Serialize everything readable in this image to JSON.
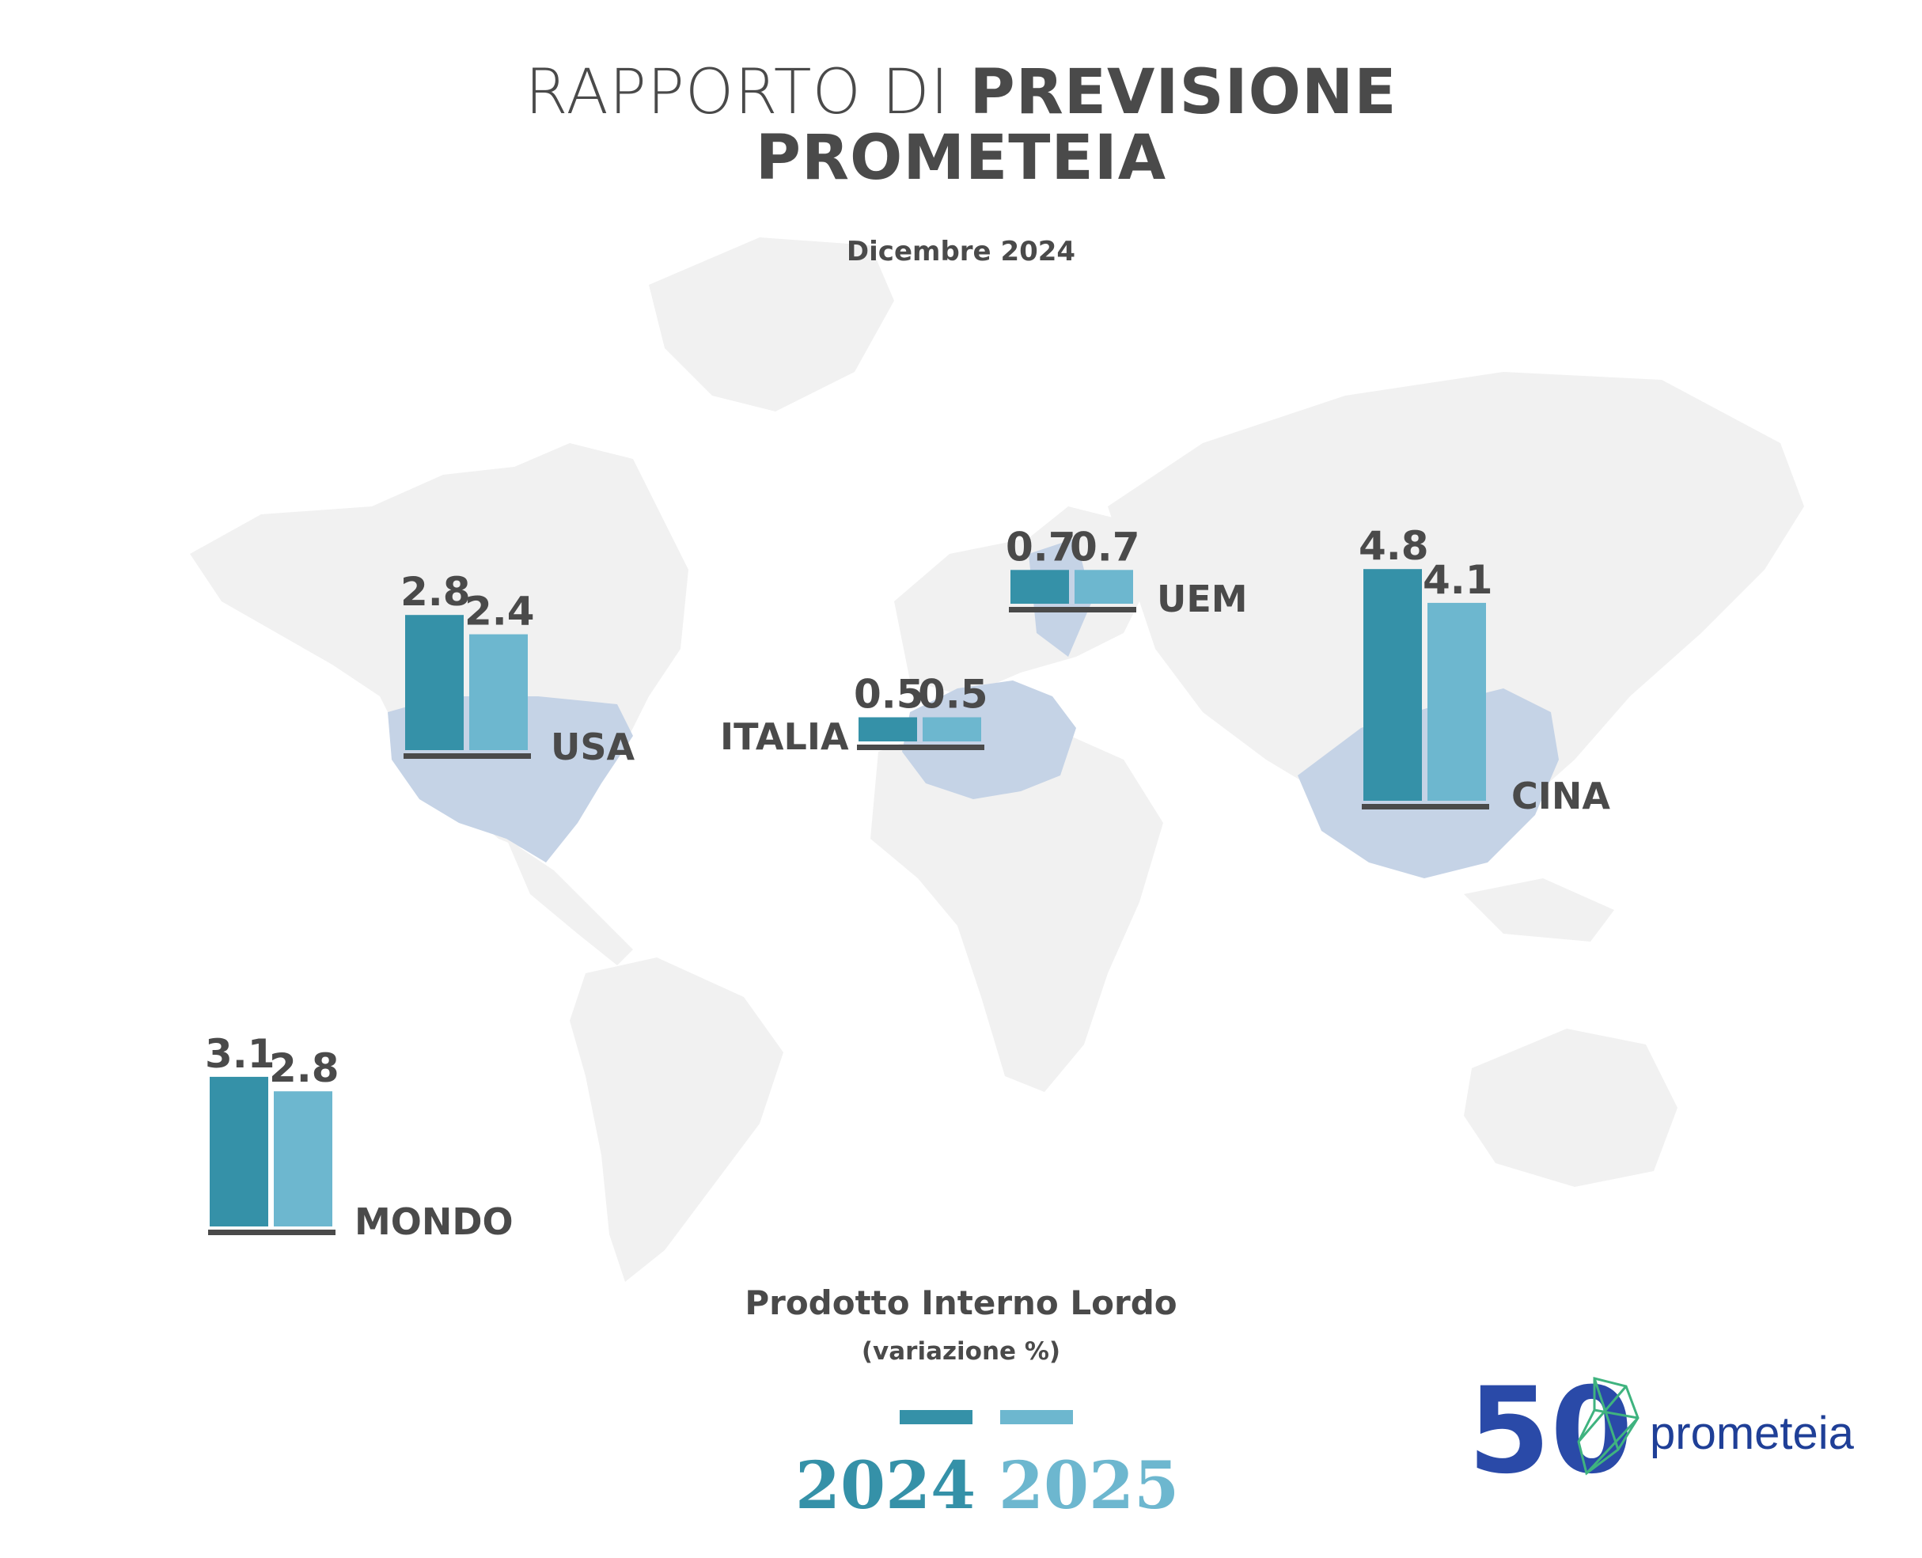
{
  "header": {
    "title_light": "RAPPORTO DI",
    "title_bold": "PREVISIONE",
    "title_line2": "PROMETEIA",
    "subtitle": "Dicembre 2024"
  },
  "colors": {
    "year_2024": "#3591a8",
    "year_2025": "#6db7cf",
    "baseline": "#4a4a4a",
    "land": "#f1f1f1",
    "highlight_land": "#c5d3e6",
    "logo_blue": "#1f3f97",
    "logo_green": "#3fb37f"
  },
  "chart_data": [
    {
      "type": "bar",
      "region": "USA",
      "categories": [
        "2024",
        "2025"
      ],
      "values": [
        2.8,
        2.4
      ]
    },
    {
      "type": "bar",
      "region": "ITALIA",
      "categories": [
        "2024",
        "2025"
      ],
      "values": [
        0.5,
        0.5
      ]
    },
    {
      "type": "bar",
      "region": "UEM",
      "categories": [
        "2024",
        "2025"
      ],
      "values": [
        0.7,
        0.7
      ]
    },
    {
      "type": "bar",
      "region": "CINA",
      "categories": [
        "2024",
        "2025"
      ],
      "values": [
        4.8,
        4.1
      ]
    },
    {
      "type": "bar",
      "region": "MONDO",
      "categories": [
        "2024",
        "2025"
      ],
      "values": [
        3.1,
        2.8
      ]
    }
  ],
  "labels": {
    "usa": "USA",
    "usa_v1": "2.8",
    "usa_v2": "2.4",
    "italia": "ITALIA",
    "italia_v1": "0.5",
    "italia_v2": "0.5",
    "uem": "UEM",
    "uem_v1": "0.7",
    "uem_v2": "0.7",
    "cina": "CINA",
    "cina_v1": "4.8",
    "cina_v2": "4.1",
    "mondo": "MONDO",
    "mondo_v1": "3.1",
    "mondo_v2": "2.8"
  },
  "legend": {
    "title": "Prodotto Interno Lordo",
    "subtitle": "(variazione %)",
    "year1": "2024",
    "year2": "2025"
  },
  "logo": {
    "number": "50",
    "name": "prometeia"
  }
}
